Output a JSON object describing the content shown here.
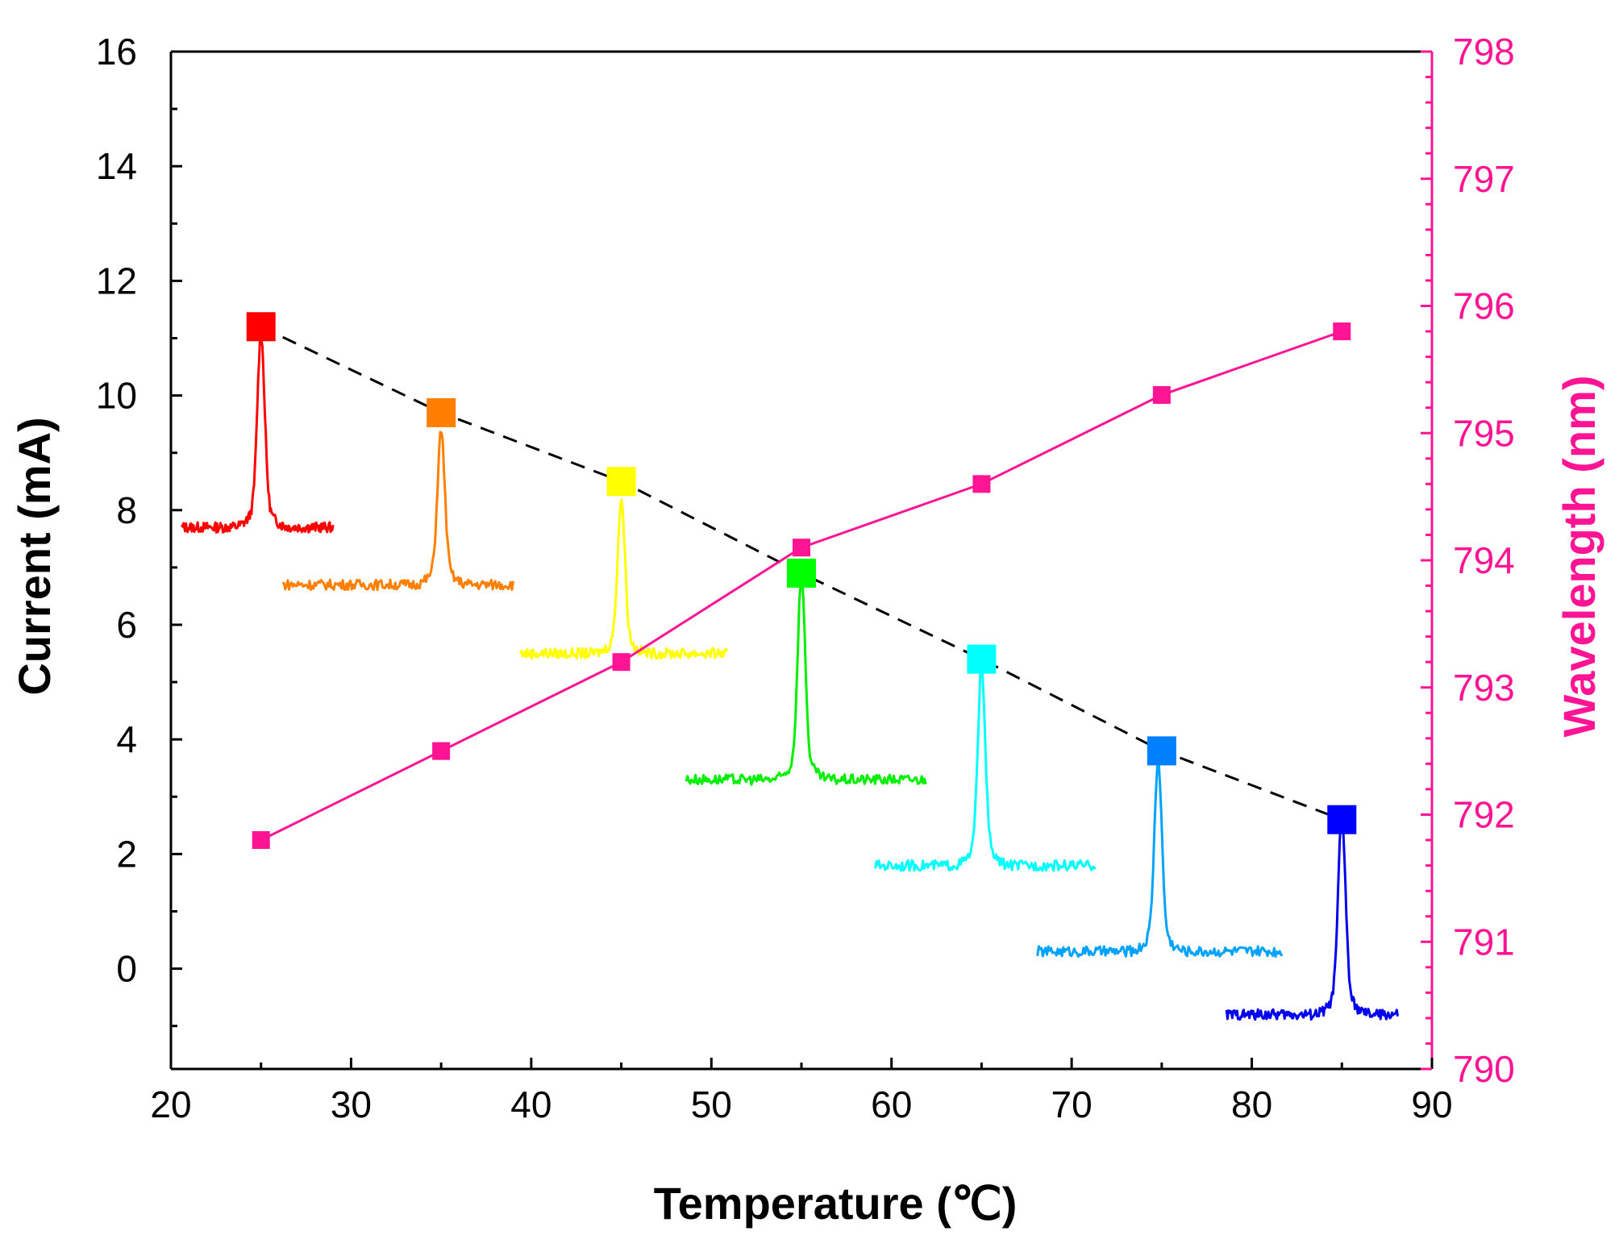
{
  "chart_data": {
    "type": "line",
    "xlabel": "Temperature (℃)",
    "ylabel": "Current (mA)",
    "ylabel_right": "Wavelength (nm)",
    "xlim": [
      20,
      90
    ],
    "ylim": [
      -1.75,
      16
    ],
    "ylim_right": [
      790,
      798
    ],
    "x_ticks": [
      20,
      30,
      40,
      50,
      60,
      70,
      80,
      90
    ],
    "y_ticks": [
      0,
      2,
      4,
      6,
      8,
      10,
      12,
      14,
      16
    ],
    "y_ticks_right": [
      790,
      791,
      792,
      793,
      794,
      795,
      796,
      797,
      798
    ],
    "colors": {
      "wavelength": "#ff1493",
      "current_line": "#000000",
      "right_axis": "#ff1493"
    },
    "series": [
      {
        "name": "Current",
        "axis": "left",
        "style": "dashed",
        "x": [
          25,
          35,
          45,
          55,
          65,
          75,
          85
        ],
        "values": [
          11.2,
          9.7,
          8.5,
          6.9,
          5.4,
          3.8,
          2.6
        ],
        "marker_colors": [
          "#ff0000",
          "#ff8000",
          "#ffff00",
          "#00ff00",
          "#00ffff",
          "#0080ff",
          "#0000ff"
        ]
      },
      {
        "name": "Wavelength",
        "axis": "right",
        "style": "solid",
        "x": [
          25,
          35,
          45,
          55,
          65,
          75,
          85
        ],
        "values": [
          791.8,
          792.5,
          793.2,
          794.1,
          794.6,
          795.3,
          795.8
        ]
      }
    ],
    "spectra": [
      {
        "temperature": 25,
        "color": "#ff0000",
        "peak_x": 25,
        "baseline": 7.7,
        "peak": 10.7,
        "x_start": 20.6,
        "x_end": 29.0
      },
      {
        "temperature": 35,
        "color": "#ff8000",
        "peak_x": 35,
        "baseline": 6.7,
        "peak": 9.1,
        "x_start": 26.2,
        "x_end": 39.0
      },
      {
        "temperature": 45,
        "color": "#ffff00",
        "peak_x": 45,
        "baseline": 5.5,
        "peak": 7.9,
        "x_start": 39.4,
        "x_end": 50.9
      },
      {
        "temperature": 55,
        "color": "#00ee00",
        "peak_x": 55,
        "baseline": 3.3,
        "peak": 6.5,
        "x_start": 48.6,
        "x_end": 61.9
      },
      {
        "temperature": 65,
        "color": "#00ffff",
        "peak_x": 65,
        "baseline": 1.8,
        "peak": 4.9,
        "x_start": 59.1,
        "x_end": 71.3
      },
      {
        "temperature": 75,
        "color": "#00a2ff",
        "peak_x": 74.8,
        "baseline": 0.3,
        "peak": 3.3,
        "x_start": 68.1,
        "x_end": 81.7
      },
      {
        "temperature": 85,
        "color": "#0000ee",
        "peak_x": 85,
        "baseline": -0.8,
        "peak": 2.3,
        "x_start": 78.6,
        "x_end": 88.1
      }
    ]
  }
}
